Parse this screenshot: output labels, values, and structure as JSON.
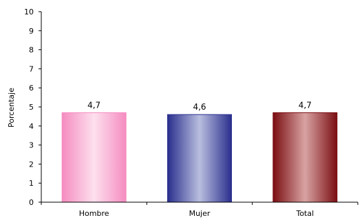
{
  "chart_data": {
    "type": "bar",
    "categories": [
      "Hombre",
      "Mujer",
      "Total"
    ],
    "values": [
      4.7,
      4.6,
      4.7
    ],
    "data_labels": [
      "4,7",
      "4,6",
      "4,7"
    ],
    "title": "",
    "xlabel": "",
    "ylabel": "Porcentaje",
    "ylim": [
      0,
      10
    ],
    "yticks": [
      0,
      1,
      2,
      3,
      4,
      5,
      6,
      7,
      8,
      9,
      10
    ],
    "ytick_labels": [
      "0",
      "1",
      "2",
      "3",
      "4",
      "5",
      "6",
      "7",
      "8",
      "9",
      "10"
    ],
    "grid": false,
    "legend": "none",
    "bar_colors": [
      {
        "edge": "#f58cc0",
        "mid": "#fde0ee"
      },
      {
        "edge": "#2a2f8e",
        "mid": "#b9bedf"
      },
      {
        "edge": "#7a0e12",
        "mid": "#d9a3a3"
      }
    ]
  }
}
